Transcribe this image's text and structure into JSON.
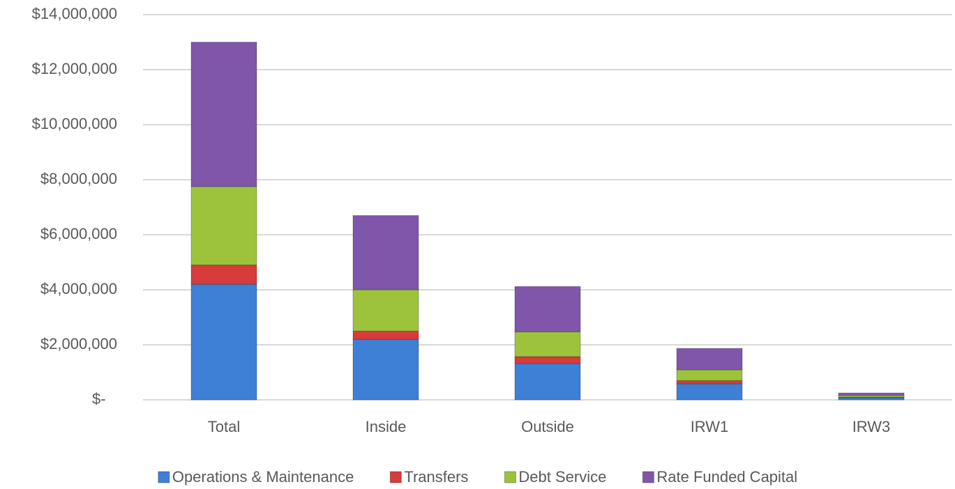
{
  "chart_data": {
    "type": "stacked_bar",
    "categories": [
      "Total",
      "Inside",
      "Outside",
      "IRW1",
      "IRW3"
    ],
    "series": [
      {
        "name": "Operations & Maintenance",
        "color": "#3d80d6",
        "values": [
          4200000,
          2200000,
          1320000,
          580000,
          80000
        ]
      },
      {
        "name": "Transfers",
        "color": "#d83b3b",
        "values": [
          700000,
          300000,
          250000,
          120000,
          20000
        ]
      },
      {
        "name": "Debt Service",
        "color": "#9dc33d",
        "values": [
          2850000,
          1500000,
          900000,
          390000,
          60000
        ]
      },
      {
        "name": "Rate Funded Capital",
        "color": "#7f56aa",
        "values": [
          5250000,
          2700000,
          1650000,
          780000,
          90000
        ]
      }
    ],
    "ylim": [
      0,
      14000000
    ],
    "yticks": [
      {
        "value": 0,
        "label": "$-"
      },
      {
        "value": 2000000,
        "label": "$2,000,000"
      },
      {
        "value": 4000000,
        "label": "$4,000,000"
      },
      {
        "value": 6000000,
        "label": "$6,000,000"
      },
      {
        "value": 8000000,
        "label": "$8,000,000"
      },
      {
        "value": 10000000,
        "label": "$10,000,000"
      },
      {
        "value": 12000000,
        "label": "$12,000,000"
      },
      {
        "value": 14000000,
        "label": "$14,000,000"
      }
    ],
    "grid": true,
    "legend": "bottom"
  }
}
